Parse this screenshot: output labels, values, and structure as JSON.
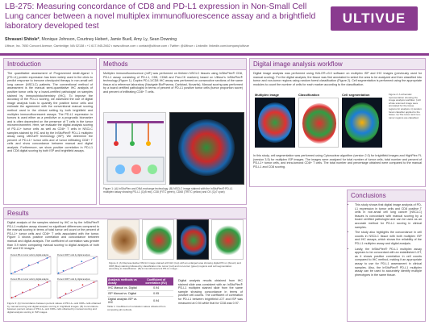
{
  "header": {
    "title": "LB-275: Measuring concordance of CD8 and PD-L1 expression in Non-Small Cell Lung cancer between a novel multiplex immunofluorescence assay and a brightfield laboratory developed test",
    "lead_author": "Shravani Shitole*",
    "authors_rest": ", Monique Johnson, Courtney Hebert, Jamie Buell, Amy Ly, Sean Downing",
    "affiliation": "Ultivue, Inc. 7650 Concord Avenue, Cambridge, MA 02138 • +1 617-945-2662 • www.ultivue.com • contact@ultivue.com • Twitter: @Ultivue • LinkedIn: linkedin.com/company/ultivue",
    "logo_text": "ULTIVUE"
  },
  "intro": {
    "heading": "Introduction",
    "body": "The quantitative assessment of Programmed death-ligand 1 (PD-L1) protein expression has been widely used in the clinic to predict response to immune checkpoint therapy in non-small cell lung cancer (NSCLC) patients. The conventional method of assessment is the manual semi-quantitative IHC analysis of positive tumor cells by a board-certified pathologist on samples stained by immunohistochemistry (IHC). To improve the accuracy of the PD-L1 scoring, we assessed the use of digital image analysis tools to quantify the positive tumor cells and estimate the agreement with the conventional manual scoring method used in the clinical setting by both brightfield and multiplex immunofluorescent assays. The PD-L1 expression in tumors is used either as a predictive or a prognostic biomarker and is often dependent on the presence of T cells in the tumor microenvironment. Here, we evaluate the digital analysis scoring of PD-L1+ tumor cells as well as CD8+ T cells in NSCLC samples stained by IHC and by the InSituPlex® PD-L1 multiplex assay using UltiVue® technology (ISP). We determine the percent of PD-L1+ tumor cells and of tumor infiltrating CD8+ T cells and show concordance between manual and digital analysis. Furthermore, we show positive correlation in PD-L1 and CD8 digital scoring by both ISP and brightfield assays."
  },
  "methods": {
    "heading": "Methods",
    "body": "Multiplex immunofluorescence (mIF) was performed on thirteen NSCLC tissues using InSituPlex® CD8, PD-L1 assay consisting of PD-L1, CD8, CD68 and Pan-CK markers) based on Ultivue's InSituPlex® technology (Figure 1). Duplex PD-L1/CD8 IHC assay was performed on consecutive sections of the same tissue at a reference laboratory (Navigate BioPharma, Carlsbad, Novartis). Manual scoring was performed by a board certified pathologist in terms of percent of PD-L1 positive tumor cells (tumor proportion score) and percent of infiltrating CD8+ T cells.",
    "caption": "Figure 1: (A) InSituPlex and DNA exchange technology. (B) NSCLC image stained with the InSituPlex® PD-L1 multiplex assay showing PD-L1 (Cy5 red), CD8 (FITC green), CD68 (TRITC yellow) and CK (Cy7 cyan)"
  },
  "workflow": {
    "heading": "Digital image analysis workflow",
    "body": "Digital image analysis was performed using HALO®-v3.0 software on multiplex ISP and IHC images (previously used for manual scoring). For the digital analysis, the tissue was first annotated to select the area to be analyzed and then classified into tumor and non-tumor regions using random forest classification (Figure 2). Cell segmentation is performed using the appropriate modules to count the number of cells for each marker according to the classification.",
    "fig_labels": [
      "Multiplex image",
      "Classification",
      "Cell segmentation"
    ],
    "caption": "Figure 2: A schematic representation showing the image analysis workflow. i) All whole scanned image were annotated for the tissue regions for analysis. ii) random forest classifier applied to the tissue. iii) The tumor and non-tumor regions are classified.",
    "body2": "In this study, cell segmentation was performed using Cytonuclear algorithm (version 2.0) for brightfield images and HighPlex FL (version 3.5) for multiplex ISP images. The images were analyzed for total number of tumor cells, total number and percent of PD-L1+ tumor cells, and intra-tumoral CD8+ T cells. The total number and percentage obtained were compared to the manual PD-L1 and CD8 scoring."
  },
  "results": {
    "heading": "Results",
    "body": "Digital analysis of the samples stained by IHC or by the InSituPlex® PD-L1 multiplex assay showed no significant differences compared to the manual scoring in terms of total tumor cell count or the percent of PD-L1+ tumor cells and CD8+ T cells associated with the tumor. Figure 3 shows positive correlation and concordance between manual and digital analysis. The coefficient of correlation was greater than 0.9 when comparing manual scoring to digital analysis of both ISP and IHC images.",
    "caption3": "Figure 3: (A) Concordance between percent values of PD-L1+ and CD8+ cells obtained by manual scoring and digital analysis scoring in brightfield images. (B) Concordance between percent values of PD-L1+ and CD8+ cells obtained by manual scoring and digital analysis scoring in ISP images.",
    "caption4": "Figure 4: (A) Representative NSCLC image stained with IHC (top) with an enlarged area showing digital PD-L1 (brown) and CD8 (blue) staining followed by classification into tumor (red) and non-tumor (green) regions and cell segmentation according to classification. (B) Immunofluorescent PD-L1 image...",
    "caption_table": "Table 1: Coefficient of correlation values obtained from comparing all methods.",
    "table_headers": [
      "Analysis methods vs Assay",
      "Coefficient of correlation (R2)"
    ],
    "table_rows": [
      [
        "IHC Manual vs. Digital",
        "0.94"
      ],
      [
        "ISP Manual vs. Digital",
        "0.95"
      ],
      [
        "Digital analysis ISP vs. IHC",
        "0.94"
      ]
    ],
    "body2": "Digital analysis results obtained from IHC stained slide was consistent with an InSituPlex® PD-L1 multiplex stained slide from the same sample showing concordance in terms of positive cell counts. The coefficient of correlation for PD-L1 between brightfield LDT and ISP was measured at 0.94 while that for CD8 was 0.97."
  },
  "conclusions": {
    "heading": "Conclusions",
    "items": [
      "This study shows that digital image analysis of PD-L1 expression in tumor cells and CD8 positive T cells in non-small cell lung cancer (NSCLC) tissues is concordant with manual scoring by a board certified pathologist and can be used as an accurate method for PD-L1 scoring in clinical samples.",
      "The study also highlights the concordance in cell counts in NSCLC tissue with both multiplex ISP and IHC assays, which shows the reliability of the PD-L1 multiplex assay and digital analysis.",
      "Lastly, the InSituPlex® PD-L1 multiplex assay appears to be concordant with an established LDT, as it shows positive correlation in cell counts compared to IHC method, making it an appropriate assay to use for PD-L1 assessment in clinical samples. Also, the InSituPlex® PD-L1 multiplex assay can be used to accurately identify multiple phenotypes in the same tissue."
    ]
  },
  "chart_data": [
    {
      "type": "scatter",
      "title": "Percent PD-L1 tumor cells by digital analysis",
      "series": [
        {
          "name": "IHC",
          "points": [
            [
              2,
              3
            ],
            [
              10,
              12
            ],
            [
              25,
              22
            ],
            [
              40,
              45
            ],
            [
              60,
              58
            ],
            [
              80,
              82
            ]
          ]
        }
      ]
    },
    {
      "type": "scatter",
      "title": "Percent CD8 T cells by digital analysis",
      "series": [
        {
          "name": "IHC",
          "points": [
            [
              1,
              2
            ],
            [
              5,
              6
            ],
            [
              12,
              11
            ],
            [
              20,
              22
            ],
            [
              30,
              28
            ]
          ]
        }
      ]
    },
    {
      "type": "scatter",
      "title": "Percent PD-L1 tumor cells by digital analysis",
      "series": [
        {
          "name": "ISP",
          "points": [
            [
              3,
              4
            ],
            [
              12,
              10
            ],
            [
              28,
              30
            ],
            [
              45,
              42
            ],
            [
              65,
              68
            ],
            [
              85,
              80
            ]
          ]
        }
      ]
    },
    {
      "type": "scatter",
      "title": "Percent CD8 T cells by digital analysis",
      "series": [
        {
          "name": "ISP",
          "points": [
            [
              2,
              1
            ],
            [
              6,
              7
            ],
            [
              10,
              12
            ],
            [
              18,
              20
            ],
            [
              26,
              24
            ]
          ]
        }
      ]
    }
  ]
}
